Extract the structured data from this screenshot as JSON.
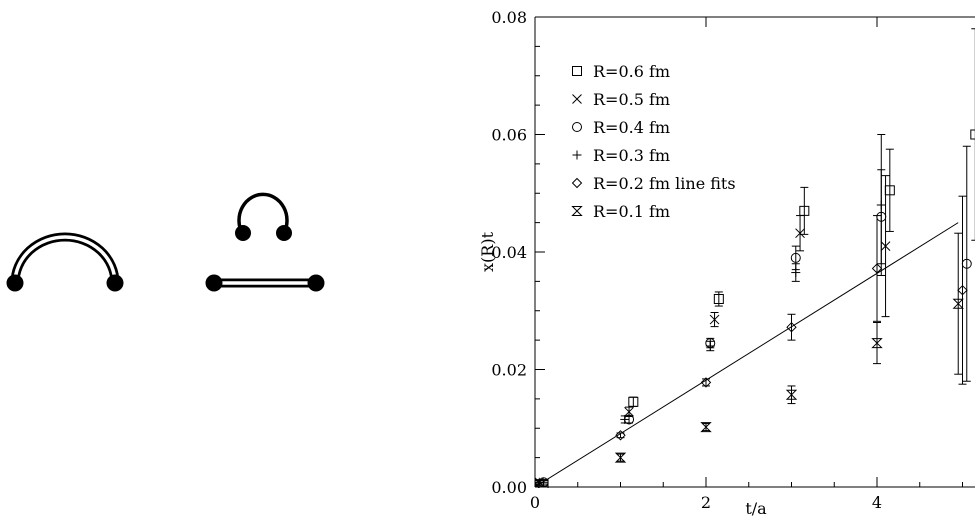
{
  "chart_data": {
    "type": "scatter",
    "xlabel": "t/a",
    "ylabel": "x(R)t",
    "xlim": [
      0,
      5.05
    ],
    "ylim": [
      0,
      0.08
    ],
    "x_ticks": [
      "0",
      "2",
      "4"
    ],
    "y_ticks": [
      "0.00",
      "0.02",
      "0.04",
      "0.06",
      "0.08"
    ],
    "legend_position": "top-left",
    "series": [
      {
        "name": "R=0.6 fm",
        "marker": "square",
        "points": [
          {
            "x": 0.1,
            "y": 0.0005,
            "err": 0.0003
          },
          {
            "x": 1.15,
            "y": 0.0145,
            "err": 0.0008
          },
          {
            "x": 2.15,
            "y": 0.032,
            "err": 0.0012
          },
          {
            "x": 3.15,
            "y": 0.047,
            "err": 0.004
          },
          {
            "x": 4.15,
            "y": 0.0505,
            "err": 0.007
          },
          {
            "x": 5.15,
            "y": 0.06,
            "err": 0.018
          }
        ]
      },
      {
        "name": "R=0.5 fm",
        "marker": "cross",
        "points": [
          {
            "x": 0.05,
            "y": 0.0008,
            "err": 0.0003
          },
          {
            "x": 1.1,
            "y": 0.0128,
            "err": 0.0008
          },
          {
            "x": 2.1,
            "y": 0.0285,
            "err": 0.0012
          },
          {
            "x": 3.1,
            "y": 0.0432,
            "err": 0.003
          },
          {
            "x": 4.1,
            "y": 0.041,
            "err": 0.012
          }
        ]
      },
      {
        "name": "R=0.4 fm",
        "marker": "circle",
        "points": [
          {
            "x": 0.1,
            "y": 0.0008,
            "err": 0.0003
          },
          {
            "x": 1.1,
            "y": 0.0115,
            "err": 0.0006
          },
          {
            "x": 2.05,
            "y": 0.0245,
            "err": 0.0008
          },
          {
            "x": 3.05,
            "y": 0.039,
            "err": 0.002
          },
          {
            "x": 4.05,
            "y": 0.046,
            "err": 0.008
          },
          {
            "x": 5.05,
            "y": 0.038,
            "err": 0.02
          }
        ]
      },
      {
        "name": "R=0.3 fm",
        "marker": "plus",
        "points": [
          {
            "x": 0.05,
            "y": 0.0008,
            "err": 0.0003
          },
          {
            "x": 1.05,
            "y": 0.0115,
            "err": 0.0006
          },
          {
            "x": 2.05,
            "y": 0.024,
            "err": 0.0008
          },
          {
            "x": 3.05,
            "y": 0.0365,
            "err": 0.0015
          },
          {
            "x": 4.05,
            "y": 0.048,
            "err": 0.012
          }
        ]
      },
      {
        "name": "R=0.2 fm line fits",
        "marker": "diamond",
        "points": [
          {
            "x": 0.0,
            "y": 0.0008,
            "err": 0.0003
          },
          {
            "x": 1.0,
            "y": 0.0088,
            "err": 0.0004
          },
          {
            "x": 2.0,
            "y": 0.0178,
            "err": 0.0006
          },
          {
            "x": 3.0,
            "y": 0.0272,
            "err": 0.0022
          },
          {
            "x": 4.0,
            "y": 0.0372,
            "err": 0.009
          },
          {
            "x": 5.0,
            "y": 0.0335,
            "err": 0.016
          }
        ]
      },
      {
        "name": "R=0.1 fm",
        "marker": "hourglass",
        "points": [
          {
            "x": 0.0,
            "y": 0.0005,
            "err": 0.0003
          },
          {
            "x": 1.0,
            "y": 0.005,
            "err": 0.0006
          },
          {
            "x": 2.0,
            "y": 0.0102,
            "err": 0.0006
          },
          {
            "x": 3.0,
            "y": 0.0157,
            "err": 0.0015
          },
          {
            "x": 4.0,
            "y": 0.0245,
            "err": 0.0035
          },
          {
            "x": 4.95,
            "y": 0.0312,
            "err": 0.012
          }
        ]
      }
    ],
    "fit_line": {
      "x": [
        0,
        4.95
      ],
      "y": [
        0.0,
        0.045
      ]
    }
  }
}
